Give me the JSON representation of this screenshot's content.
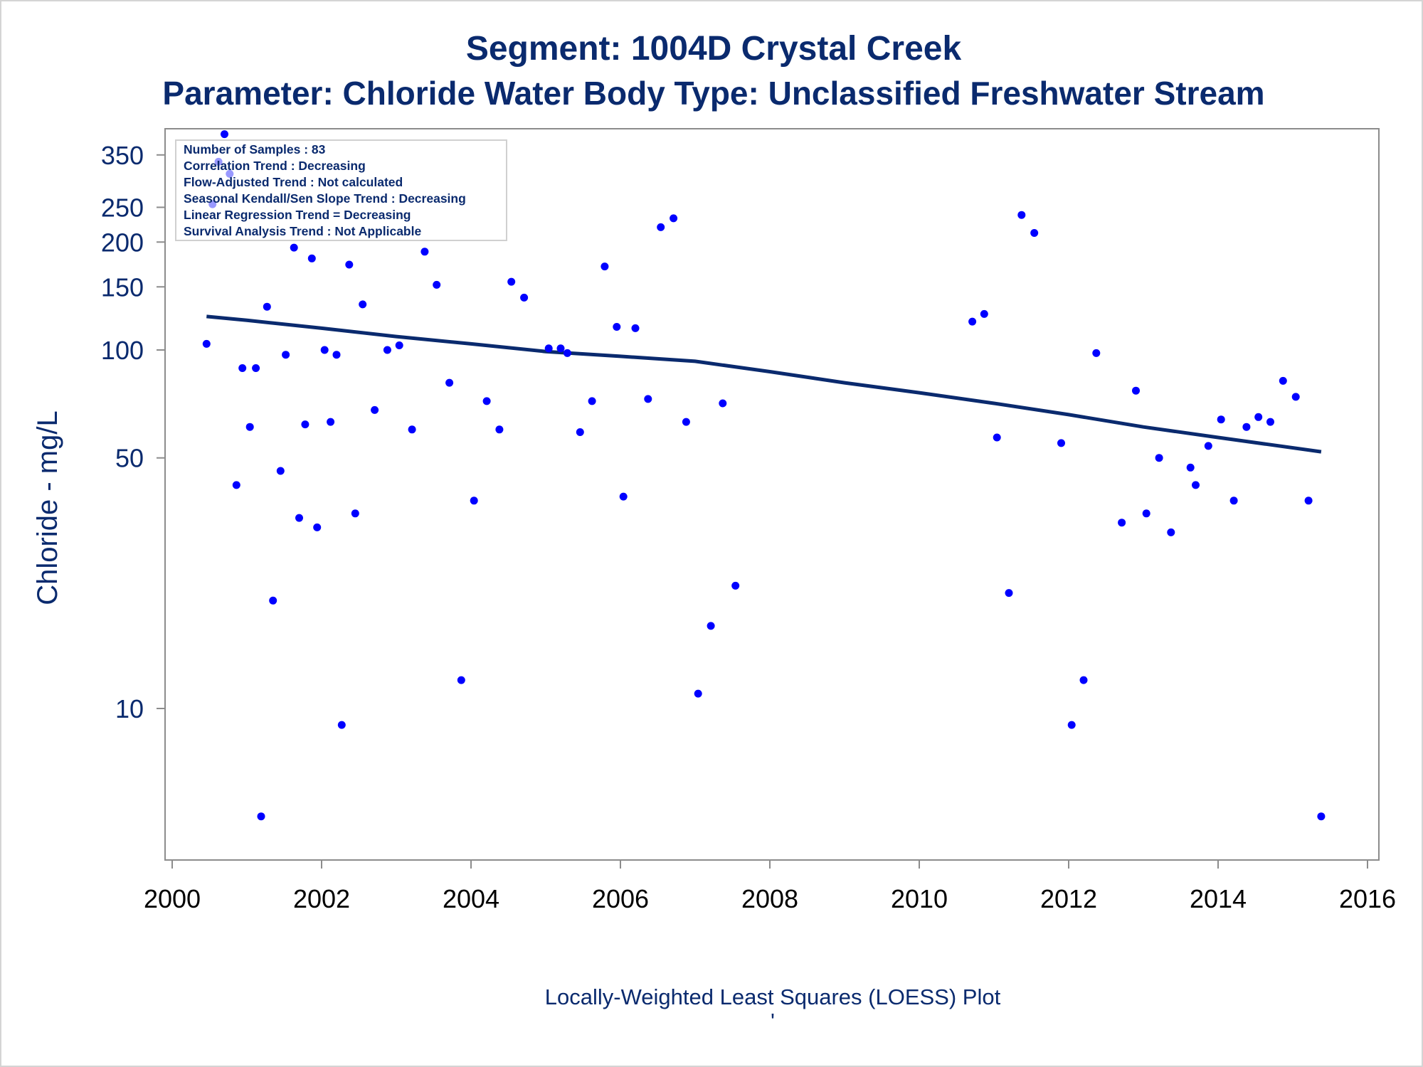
{
  "chart_data": {
    "type": "scatter",
    "title": "Segment: 1004D  Crystal Creek",
    "subtitle": "Parameter: Chloride   Water Body Type: Unclassified Freshwater Stream",
    "xlabel": "",
    "ylabel": "Chloride - mg/L",
    "footnote": "Locally-Weighted Least Squares (LOESS) Plot",
    "footnote_mark": "'",
    "y_scale": "log",
    "xlim": [
      2000,
      2016
    ],
    "ylim": [
      3.9,
      430
    ],
    "x_ticks": [
      "2000",
      "2002",
      "2004",
      "2006",
      "2008",
      "2010",
      "2012",
      "2014",
      "2016"
    ],
    "y_ticks": [
      "10",
      "50",
      "100",
      "150",
      "200",
      "250",
      "350"
    ],
    "grid": false,
    "legend": "none",
    "colors": {
      "points": "#0000ff",
      "trend_line": "#0a2a6e",
      "text": "#0a2a6e",
      "x_tick_text": "#000000",
      "y_tick_text": "#0a2a6e",
      "axis": "#8c8c8c"
    },
    "info_box": {
      "position": "top-left",
      "lines": [
        "Number of Samples : 83",
        "Correlation Trend : Decreasing",
        "Flow-Adjusted Trend : Not calculated",
        "Seasonal Kendall/Sen Slope Trend : Decreasing",
        "Linear Regression Trend = Decreasing",
        "Survival Analysis Trend : Not Applicable"
      ]
    },
    "series": [
      {
        "kind": "scatter",
        "x": [
          2000.46,
          2000.54,
          2000.62,
          2000.7,
          2000.77,
          2000.86,
          2000.94,
          2001.04,
          2001.12,
          2001.19,
          2001.27,
          2001.35,
          2001.45,
          2001.52,
          2001.63,
          2001.7,
          2001.78,
          2001.87,
          2001.94,
          2002.04,
          2002.12,
          2002.2,
          2002.27,
          2002.37,
          2002.45,
          2002.55,
          2002.71,
          2002.88,
          2003.04,
          2003.21,
          2003.38,
          2003.54,
          2003.71,
          2003.87,
          2004.04,
          2004.21,
          2004.38,
          2004.54,
          2004.71,
          2005.04,
          2005.2,
          2005.29,
          2005.46,
          2005.62,
          2005.79,
          2005.95,
          2006.04,
          2006.2,
          2006.37,
          2006.54,
          2006.71,
          2006.88,
          2007.04,
          2007.21,
          2007.37,
          2007.54,
          2010.71,
          2010.87,
          2011.04,
          2011.2,
          2011.37,
          2011.54,
          2011.9,
          2012.04,
          2012.2,
          2012.37,
          2012.71,
          2012.9,
          2013.04,
          2013.21,
          2013.37,
          2013.63,
          2013.7,
          2013.87,
          2014.04,
          2014.21,
          2014.38,
          2014.54,
          2014.7,
          2014.87,
          2015.04,
          2015.21,
          2015.38
        ],
        "y": [
          104,
          255,
          335,
          400,
          310,
          42,
          89,
          61,
          89,
          5.0,
          132,
          20,
          46,
          97,
          193,
          34,
          62,
          180,
          32,
          100,
          63,
          97,
          9,
          173,
          35,
          134,
          68,
          100,
          103,
          60,
          188,
          152,
          81,
          12,
          38,
          72,
          60,
          155,
          140,
          101,
          101,
          98,
          59,
          72,
          171,
          116,
          39,
          115,
          73,
          220,
          233,
          63,
          11,
          17,
          71,
          22,
          120,
          126,
          57,
          21,
          238,
          212,
          55,
          9,
          12,
          98,
          33,
          77,
          35,
          50,
          31,
          47,
          42,
          54,
          64,
          38,
          61,
          65,
          63,
          82,
          74,
          38,
          5.0
        ]
      },
      {
        "kind": "loess",
        "x": [
          2000.46,
          2001.0,
          2002.0,
          2003.0,
          2004.0,
          2005.0,
          2006.0,
          2007.0,
          2008.0,
          2009.0,
          2010.0,
          2011.0,
          2012.0,
          2013.0,
          2014.0,
          2015.38
        ],
        "y": [
          124,
          121,
          115,
          109,
          104,
          99,
          96,
          93,
          87,
          81,
          76,
          71,
          66,
          61,
          57,
          52
        ]
      }
    ]
  }
}
